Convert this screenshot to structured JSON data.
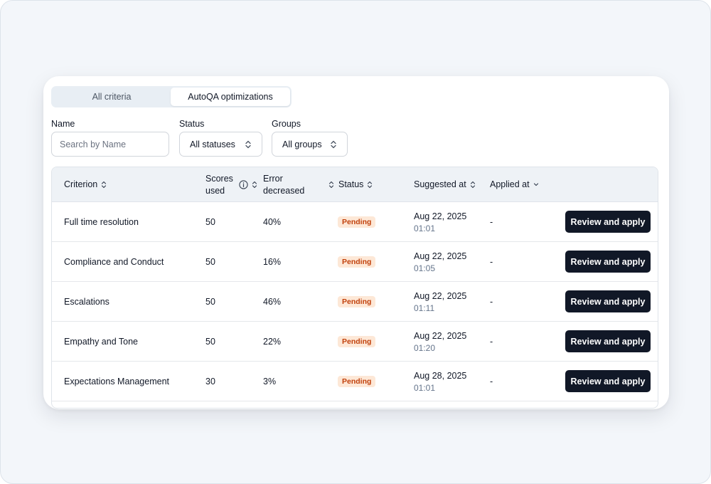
{
  "tabs": [
    {
      "label": "All criteria",
      "active": false
    },
    {
      "label": "AutoQA optimizations",
      "active": true
    }
  ],
  "filters": {
    "name_label": "Name",
    "name_placeholder": "Search by Name",
    "status_label": "Status",
    "status_value": "All statuses",
    "groups_label": "Groups",
    "groups_value": "All groups"
  },
  "columns": {
    "criterion": "Criterion",
    "scores_used_line1": "Scores",
    "scores_used_line2": "used",
    "error_decreased_line1": "Error",
    "error_decreased_line2": "decreased",
    "status": "Status",
    "suggested_at": "Suggested at",
    "applied_at": "Applied at"
  },
  "rows": [
    {
      "criterion": "Full time resolution",
      "scores_used": "50",
      "error_decreased": "40%",
      "status": "Pending",
      "suggested_date": "Aug 22, 2025",
      "suggested_time": "01:01",
      "applied_at": "-",
      "action": "Review and apply"
    },
    {
      "criterion": "Compliance and Conduct",
      "scores_used": "50",
      "error_decreased": "16%",
      "status": "Pending",
      "suggested_date": "Aug 22, 2025",
      "suggested_time": "01:05",
      "applied_at": "-",
      "action": "Review and apply"
    },
    {
      "criterion": "Escalations",
      "scores_used": "50",
      "error_decreased": "46%",
      "status": "Pending",
      "suggested_date": "Aug 22, 2025",
      "suggested_time": "01:11",
      "applied_at": "-",
      "action": "Review and apply"
    },
    {
      "criterion": "Empathy and Tone",
      "scores_used": "50",
      "error_decreased": "22%",
      "status": "Pending",
      "suggested_date": "Aug 22, 2025",
      "suggested_time": "01:20",
      "applied_at": "-",
      "action": "Review and apply"
    },
    {
      "criterion": "Expectations Management",
      "scores_used": "30",
      "error_decreased": "3%",
      "status": "Pending",
      "suggested_date": "Aug 28, 2025",
      "suggested_time": "01:01",
      "applied_at": "-",
      "action": "Review and apply"
    }
  ],
  "colors": {
    "accent": "#111827",
    "pending_bg": "#fde8d7",
    "pending_text": "#c2410c"
  }
}
